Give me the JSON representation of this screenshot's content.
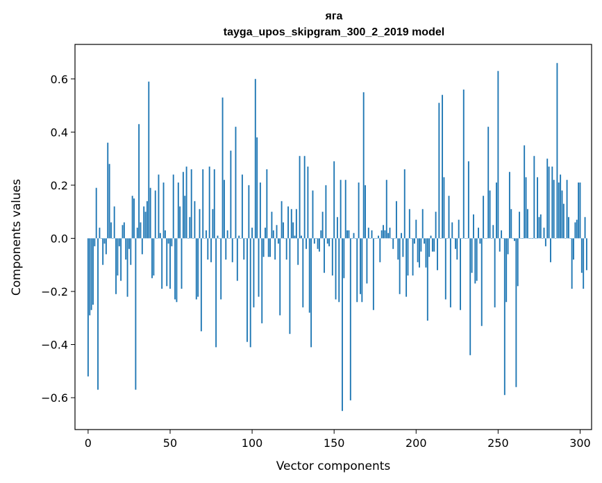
{
  "chart_data": {
    "type": "bar",
    "title": "яга",
    "subtitle": "tayga_upos_skipgram_300_2_2019 model",
    "xlabel": "Vector components",
    "ylabel": "Components values",
    "xlim": [
      -8,
      307
    ],
    "ylim": [
      -0.72,
      0.73
    ],
    "xticks": [
      0,
      50,
      100,
      150,
      200,
      250,
      300
    ],
    "xtick_labels": [
      "0",
      "50",
      "100",
      "150",
      "200",
      "250",
      "300"
    ],
    "yticks": [
      -0.6,
      -0.4,
      -0.2,
      0.0,
      0.2,
      0.4,
      0.6
    ],
    "ytick_labels": [
      "−0.6",
      "−0.4",
      "−0.2",
      "0.0",
      "0.2",
      "0.4",
      "0.6"
    ],
    "bar_color": "#1f77b4",
    "values": [
      -0.52,
      -0.29,
      -0.27,
      -0.25,
      -0.03,
      0.19,
      -0.57,
      0.04,
      0.0,
      -0.1,
      -0.02,
      -0.06,
      0.36,
      0.28,
      0.06,
      0.0,
      0.12,
      -0.21,
      -0.14,
      -0.03,
      -0.16,
      0.05,
      0.06,
      -0.08,
      -0.22,
      -0.04,
      -0.1,
      0.16,
      0.15,
      -0.57,
      0.04,
      0.43,
      0.06,
      -0.06,
      0.12,
      0.1,
      0.14,
      0.59,
      0.19,
      -0.15,
      -0.14,
      0.18,
      0.0,
      0.24,
      0.02,
      -0.19,
      0.21,
      0.03,
      -0.18,
      -0.02,
      -0.19,
      -0.03,
      0.24,
      -0.23,
      -0.24,
      0.21,
      0.12,
      -0.19,
      0.25,
      0.16,
      0.27,
      0.0,
      0.08,
      0.26,
      0.0,
      0.14,
      -0.23,
      -0.22,
      0.11,
      -0.35,
      0.26,
      0.0,
      0.03,
      -0.08,
      0.27,
      -0.09,
      0.11,
      0.26,
      -0.41,
      0.01,
      0.0,
      -0.23,
      0.53,
      0.22,
      -0.08,
      0.03,
      0.0,
      0.33,
      -0.09,
      0.0,
      0.42,
      -0.16,
      0.01,
      0.0,
      0.24,
      -0.08,
      0.0,
      -0.39,
      0.2,
      -0.41,
      0.04,
      -0.26,
      0.6,
      0.38,
      -0.22,
      0.21,
      -0.32,
      -0.07,
      0.04,
      0.26,
      -0.07,
      -0.07,
      0.1,
      0.03,
      -0.08,
      0.05,
      -0.02,
      -0.29,
      0.14,
      0.06,
      0.0,
      -0.08,
      0.12,
      -0.36,
      0.11,
      0.06,
      0.01,
      0.11,
      -0.1,
      0.31,
      0.01,
      -0.26,
      0.31,
      -0.04,
      0.27,
      -0.28,
      -0.41,
      0.18,
      -0.02,
      0.0,
      -0.04,
      -0.05,
      0.03,
      0.1,
      -0.13,
      0.2,
      -0.02,
      -0.03,
      0.0,
      -0.14,
      0.29,
      -0.23,
      0.08,
      -0.24,
      0.22,
      -0.65,
      -0.15,
      0.22,
      0.03,
      0.03,
      -0.61,
      0.0,
      0.02,
      0.0,
      -0.24,
      0.21,
      -0.21,
      -0.24,
      0.55,
      0.2,
      -0.17,
      0.04,
      0.0,
      0.03,
      -0.27,
      0.0,
      0.0,
      0.01,
      -0.09,
      0.03,
      0.05,
      0.03,
      0.22,
      0.02,
      0.04,
      0.0,
      -0.04,
      0.0,
      0.14,
      -0.08,
      -0.21,
      0.02,
      -0.07,
      0.26,
      -0.22,
      -0.14,
      0.11,
      0.0,
      -0.14,
      -0.02,
      0.07,
      -0.09,
      -0.11,
      -0.05,
      0.11,
      -0.02,
      -0.11,
      -0.31,
      -0.07,
      0.01,
      -0.05,
      -0.05,
      0.1,
      -0.12,
      0.51,
      0.0,
      0.54,
      0.23,
      -0.23,
      0.0,
      0.16,
      -0.26,
      0.06,
      0.0,
      -0.04,
      -0.08,
      0.07,
      -0.27,
      0.0,
      0.56,
      0.0,
      0.0,
      0.29,
      -0.44,
      -0.13,
      0.09,
      -0.17,
      -0.16,
      0.04,
      -0.02,
      -0.33,
      0.16,
      0.0,
      0.0,
      0.42,
      0.18,
      0.0,
      0.05,
      -0.26,
      0.21,
      0.63,
      -0.05,
      0.03,
      0.0,
      -0.59,
      -0.24,
      -0.06,
      0.25,
      0.11,
      0.0,
      -0.01,
      -0.56,
      -0.18,
      0.1,
      0.0,
      0.0,
      0.35,
      0.23,
      0.11,
      0.0,
      0.0,
      0.0,
      0.31,
      0.0,
      0.23,
      0.08,
      0.09,
      0.0,
      0.04,
      -0.03,
      0.3,
      0.27,
      -0.09,
      0.27,
      0.22,
      0.0,
      0.66,
      0.21,
      0.24,
      0.18,
      0.13,
      0.0,
      0.22,
      0.08,
      0.0,
      -0.19,
      -0.08,
      0.06,
      0.07,
      0.21,
      0.21,
      -0.13,
      -0.19,
      0.08,
      -0.12
    ]
  }
}
